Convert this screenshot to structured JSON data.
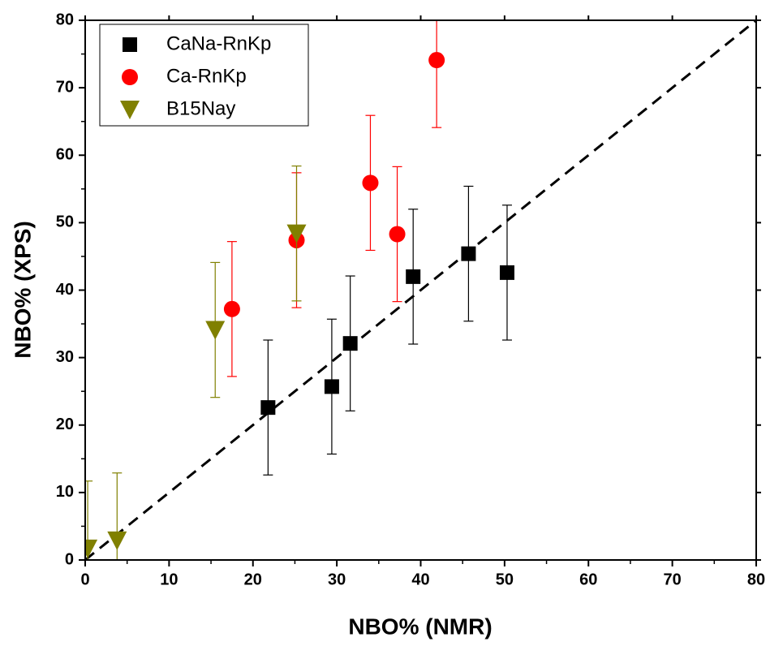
{
  "chart_data": {
    "type": "scatter",
    "x_label": "NBO% (NMR)",
    "y_label": "NBO% (XPS)",
    "xlim": [
      0,
      80
    ],
    "ylim": [
      0,
      80
    ],
    "xticks": [
      0,
      10,
      20,
      30,
      40,
      50,
      60,
      70,
      80
    ],
    "yticks": [
      0,
      10,
      20,
      30,
      40,
      50,
      60,
      70,
      80
    ],
    "legend": "upper left",
    "reference_line": "dashed",
    "series": [
      {
        "name": "CaNa-RnKp",
        "color": "#000000",
        "marker": "square",
        "x": [
          21.8,
          29.4,
          31.6,
          39.1,
          45.7,
          50.3
        ],
        "values": [
          22.6,
          25.7,
          32.1,
          42.0,
          45.4,
          42.6
        ],
        "errors": [
          10,
          10,
          10,
          10,
          10,
          10
        ]
      },
      {
        "name": "Ca-RnKp",
        "color": "#ff0000",
        "marker": "circle",
        "x": [
          17.5,
          25.2,
          34.0,
          37.2,
          41.9
        ],
        "values": [
          37.2,
          47.4,
          55.9,
          48.3,
          74.1
        ],
        "errors": [
          10,
          10,
          10,
          10,
          10
        ]
      },
      {
        "name": "B15Nay",
        "color": "#808000",
        "marker": "triangle-down",
        "x": [
          0.3,
          3.8,
          15.5,
          25.2
        ],
        "values": [
          1.7,
          2.9,
          34.1,
          48.4
        ],
        "errors": [
          10,
          10,
          10,
          10
        ]
      }
    ]
  }
}
